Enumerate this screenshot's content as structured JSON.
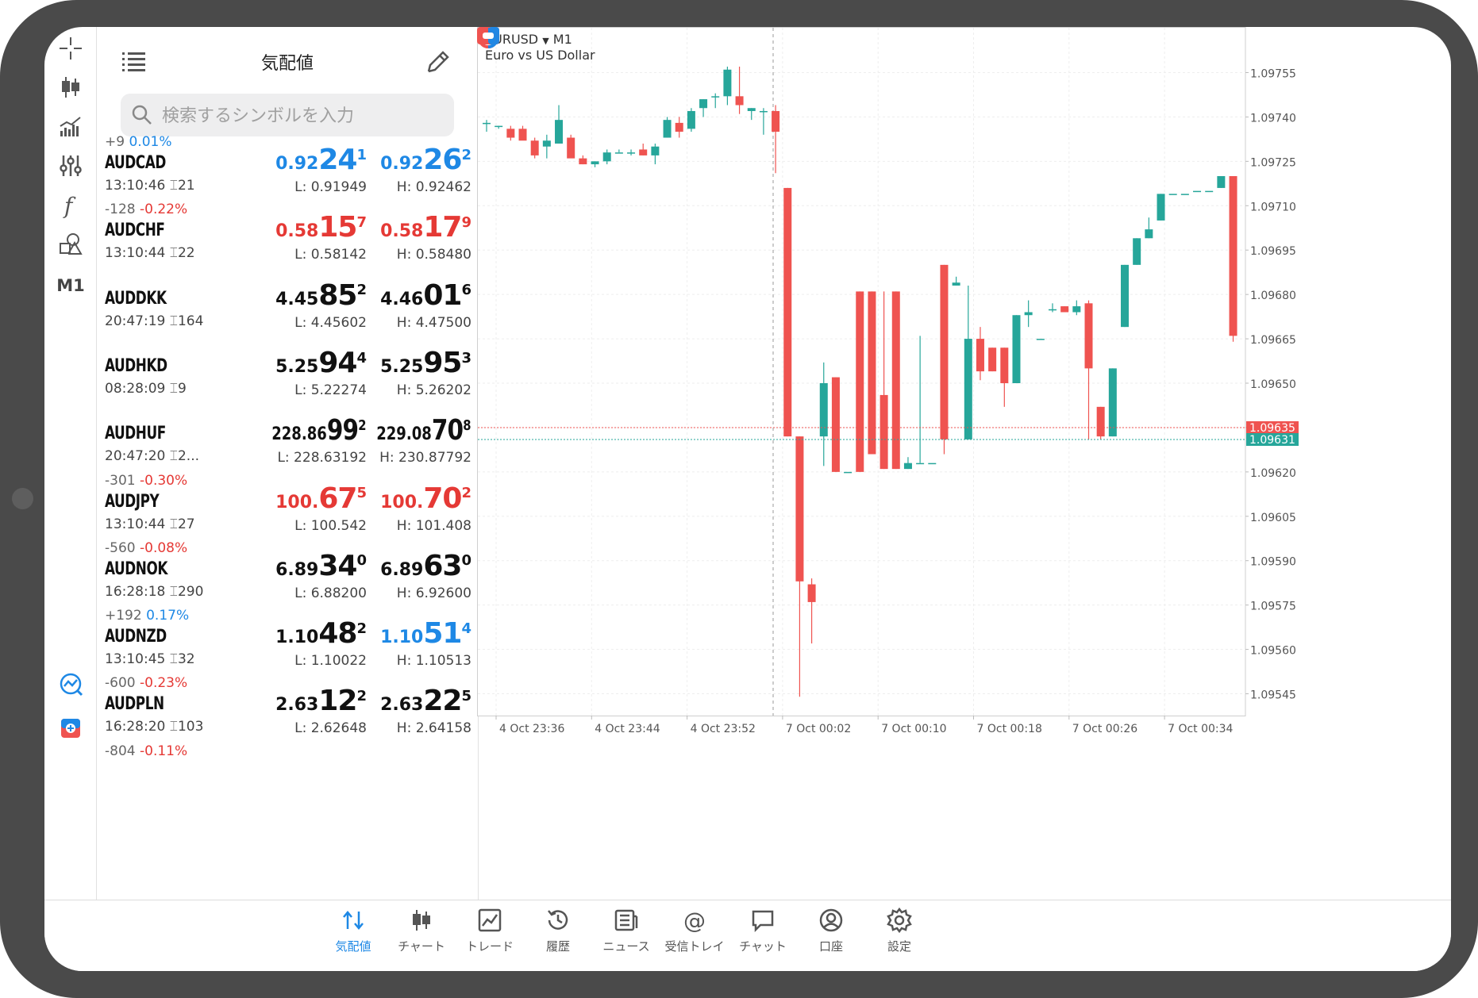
{
  "toolbar": {
    "items": [
      "crosshair-icon",
      "candlestick-icon",
      "indicators-icon",
      "settings-sliders-icon",
      "function-icon",
      "objects-icon"
    ],
    "timeframe": "M1"
  },
  "quotes": {
    "title": "気配値",
    "search_placeholder": "検索するシンボルを入力",
    "rows": [
      {
        "change": "+9",
        "pct": "0.01%",
        "dir": "up",
        "symbol": "AUDCAD",
        "time": "13:10:46",
        "spread": "21",
        "bid": {
          "pre": "0.92",
          "big": "24",
          "sup": "1",
          "color": "blue"
        },
        "ask": {
          "pre": "0.92",
          "big": "26",
          "sup": "2",
          "color": "blue"
        },
        "low": "L: 0.91949",
        "high": "H: 0.92462"
      },
      {
        "change": "-128",
        "pct": "-0.22%",
        "dir": "down",
        "symbol": "AUDCHF",
        "time": "13:10:44",
        "spread": "22",
        "bid": {
          "pre": "0.58",
          "big": "15",
          "sup": "7",
          "color": "red"
        },
        "ask": {
          "pre": "0.58",
          "big": "17",
          "sup": "9",
          "color": "red"
        },
        "low": "L: 0.58142",
        "high": "H: 0.58480"
      },
      {
        "change": "",
        "pct": "",
        "dir": "",
        "symbol": "AUDDKK",
        "time": "20:47:19",
        "spread": "164",
        "bid": {
          "pre": "4.45",
          "big": "85",
          "sup": "2",
          "color": "black"
        },
        "ask": {
          "pre": "4.46",
          "big": "01",
          "sup": "6",
          "color": "black"
        },
        "low": "L: 4.45602",
        "high": "H: 4.47500"
      },
      {
        "change": "",
        "pct": "",
        "dir": "",
        "symbol": "AUDHKD",
        "time": "08:28:09",
        "spread": "9",
        "bid": {
          "pre": "5.25",
          "big": "94",
          "sup": "4",
          "color": "black"
        },
        "ask": {
          "pre": "5.25",
          "big": "95",
          "sup": "3",
          "color": "black"
        },
        "low": "L: 5.22274",
        "high": "H: 5.26202"
      },
      {
        "change": "",
        "pct": "",
        "dir": "",
        "symbol": "AUDHUF",
        "time": "20:47:20",
        "spread": "2...",
        "bid": {
          "pre": "228.86",
          "big": "99",
          "sup": "2",
          "color": "black"
        },
        "ask": {
          "pre": "229.08",
          "big": "70",
          "sup": "8",
          "color": "black"
        },
        "low": "L: 228.63192",
        "high": "H: 230.87792"
      },
      {
        "change": "-301",
        "pct": "-0.30%",
        "dir": "down",
        "symbol": "AUDJPY",
        "time": "13:10:44",
        "spread": "27",
        "bid": {
          "pre": "100.",
          "big": "67",
          "sup": "5",
          "color": "red"
        },
        "ask": {
          "pre": "100.",
          "big": "70",
          "sup": "2",
          "color": "red"
        },
        "low": "L: 100.542",
        "high": "H: 101.408"
      },
      {
        "change": "-560",
        "pct": "-0.08%",
        "dir": "down",
        "symbol": "AUDNOK",
        "time": "16:28:18",
        "spread": "290",
        "bid": {
          "pre": "6.89",
          "big": "34",
          "sup": "0",
          "color": "black"
        },
        "ask": {
          "pre": "6.89",
          "big": "63",
          "sup": "0",
          "color": "black"
        },
        "low": "L: 6.88200",
        "high": "H: 6.92600"
      },
      {
        "change": "+192",
        "pct": "0.17%",
        "dir": "up",
        "symbol": "AUDNZD",
        "time": "13:10:45",
        "spread": "32",
        "bid": {
          "pre": "1.10",
          "big": "48",
          "sup": "2",
          "color": "black"
        },
        "ask": {
          "pre": "1.10",
          "big": "51",
          "sup": "4",
          "color": "blue"
        },
        "low": "L: 1.10022",
        "high": "H: 1.10513"
      },
      {
        "change": "-600",
        "pct": "-0.23%",
        "dir": "down",
        "symbol": "AUDPLN",
        "time": "16:28:20",
        "spread": "103",
        "bid": {
          "pre": "2.63",
          "big": "12",
          "sup": "2",
          "color": "black"
        },
        "ask": {
          "pre": "2.63",
          "big": "22",
          "sup": "5",
          "color": "black"
        },
        "low": "L: 2.62648",
        "high": "H: 2.64158"
      },
      {
        "change": "-804",
        "pct": "-0.11%",
        "dir": "down",
        "symbol": "",
        "time": "",
        "spread": "",
        "bid": {
          "pre": "",
          "big": "",
          "sup": "",
          "color": "black"
        },
        "ask": {
          "pre": "",
          "big": "",
          "sup": "",
          "color": "black"
        },
        "low": "",
        "high": ""
      }
    ]
  },
  "chart": {
    "symbol": "EURUSD",
    "timeframe": "M1",
    "description": "Euro vs US Dollar",
    "price_labels": [
      "1.09755",
      "1.09740",
      "1.09725",
      "1.09710",
      "1.09695",
      "1.09680",
      "1.09665",
      "1.09650",
      "1.09635",
      "1.09620",
      "1.09605",
      "1.09590",
      "1.09575",
      "1.09560",
      "1.09545"
    ],
    "bid_label": "1.09635",
    "ask_label": "1.09631",
    "time_labels": [
      "4 Oct 23:36",
      "4 Oct 23:44",
      "4 Oct 23:52",
      "7 Oct 00:02",
      "7 Oct 00:10",
      "7 Oct 00:18",
      "7 Oct 00:26",
      "7 Oct 00:34"
    ],
    "colors": {
      "up": "#26a69a",
      "down": "#ef5350",
      "bid_line": "#ef5350",
      "ask_line": "#26a69a"
    },
    "candles": [
      {
        "o": 1.09738,
        "h": 1.09739,
        "l": 1.09735,
        "c": 1.09738
      },
      {
        "o": 1.09737,
        "h": 1.09737,
        "l": 1.09736,
        "c": 1.09737
      },
      {
        "o": 1.09736,
        "h": 1.09737,
        "l": 1.09732,
        "c": 1.09733
      },
      {
        "o": 1.09736,
        "h": 1.09737,
        "l": 1.09733,
        "c": 1.09732
      },
      {
        "o": 1.09732,
        "h": 1.09733,
        "l": 1.09726,
        "c": 1.09727
      },
      {
        "o": 1.0973,
        "h": 1.09734,
        "l": 1.09726,
        "c": 1.09732
      },
      {
        "o": 1.09731,
        "h": 1.09744,
        "l": 1.09731,
        "c": 1.09739
      },
      {
        "o": 1.09733,
        "h": 1.09734,
        "l": 1.09727,
        "c": 1.09726
      },
      {
        "o": 1.09726,
        "h": 1.09727,
        "l": 1.09724,
        "c": 1.09724
      },
      {
        "o": 1.09724,
        "h": 1.09725,
        "l": 1.09723,
        "c": 1.09725
      },
      {
        "o": 1.09725,
        "h": 1.09729,
        "l": 1.09724,
        "c": 1.09728
      },
      {
        "o": 1.09728,
        "h": 1.09729,
        "l": 1.09728,
        "c": 1.09728
      },
      {
        "o": 1.09728,
        "h": 1.09729,
        "l": 1.09727,
        "c": 1.09728
      },
      {
        "o": 1.09729,
        "h": 1.09731,
        "l": 1.09727,
        "c": 1.09727
      },
      {
        "o": 1.09727,
        "h": 1.09731,
        "l": 1.09724,
        "c": 1.0973
      },
      {
        "o": 1.09733,
        "h": 1.0974,
        "l": 1.09733,
        "c": 1.09739
      },
      {
        "o": 1.09738,
        "h": 1.0974,
        "l": 1.09733,
        "c": 1.09735
      },
      {
        "o": 1.09736,
        "h": 1.09743,
        "l": 1.09735,
        "c": 1.09742
      },
      {
        "o": 1.09743,
        "h": 1.09746,
        "l": 1.0974,
        "c": 1.09746
      },
      {
        "o": 1.09747,
        "h": 1.09748,
        "l": 1.09743,
        "c": 1.09747
      },
      {
        "o": 1.09747,
        "h": 1.09757,
        "l": 1.09744,
        "c": 1.09756
      },
      {
        "o": 1.09747,
        "h": 1.09757,
        "l": 1.09741,
        "c": 1.09744
      },
      {
        "o": 1.09742,
        "h": 1.09743,
        "l": 1.09739,
        "c": 1.09743
      },
      {
        "o": 1.09742,
        "h": 1.09743,
        "l": 1.09734,
        "c": 1.09742
      },
      {
        "o": 1.09742,
        "h": 1.09744,
        "l": 1.09721,
        "c": 1.09735
      },
      {
        "o": 1.09716,
        "h": 1.09716,
        "l": 1.09632,
        "c": 1.09632
      },
      {
        "o": 1.09632,
        "h": 1.09632,
        "l": 1.09544,
        "c": 1.09583
      },
      {
        "o": 1.09582,
        "h": 1.09584,
        "l": 1.09562,
        "c": 1.09576
      },
      {
        "o": 1.09632,
        "h": 1.09657,
        "l": 1.09622,
        "c": 1.0965
      },
      {
        "o": 1.09652,
        "h": 1.09652,
        "l": 1.0962,
        "c": 1.0962
      },
      {
        "o": 1.0962,
        "h": 1.0962,
        "l": 1.0962,
        "c": 1.0962
      },
      {
        "o": 1.09681,
        "h": 1.09681,
        "l": 1.0962,
        "c": 1.0962
      },
      {
        "o": 1.09681,
        "h": 1.09681,
        "l": 1.09626,
        "c": 1.09626
      },
      {
        "o": 1.09646,
        "h": 1.09681,
        "l": 1.09621,
        "c": 1.09621
      },
      {
        "o": 1.09681,
        "h": 1.09681,
        "l": 1.09621,
        "c": 1.09621
      },
      {
        "o": 1.09621,
        "h": 1.09625,
        "l": 1.09621,
        "c": 1.09623
      },
      {
        "o": 1.09623,
        "h": 1.09666,
        "l": 1.09623,
        "c": 1.09623
      },
      {
        "o": 1.09623,
        "h": 1.09623,
        "l": 1.09623,
        "c": 1.09623
      },
      {
        "o": 1.0969,
        "h": 1.0969,
        "l": 1.09626,
        "c": 1.09631
      },
      {
        "o": 1.09683,
        "h": 1.09686,
        "l": 1.09683,
        "c": 1.09684
      },
      {
        "o": 1.09631,
        "h": 1.09683,
        "l": 1.09631,
        "c": 1.09665
      },
      {
        "o": 1.09665,
        "h": 1.09669,
        "l": 1.09651,
        "c": 1.09654
      },
      {
        "o": 1.09662,
        "h": 1.09662,
        "l": 1.09654,
        "c": 1.09654
      },
      {
        "o": 1.09662,
        "h": 1.09662,
        "l": 1.09642,
        "c": 1.0965
      },
      {
        "o": 1.0965,
        "h": 1.09673,
        "l": 1.0965,
        "c": 1.09673
      },
      {
        "o": 1.09673,
        "h": 1.09678,
        "l": 1.09669,
        "c": 1.09674
      },
      {
        "o": 1.09665,
        "h": 1.09665,
        "l": 1.09665,
        "c": 1.09665
      },
      {
        "o": 1.09675,
        "h": 1.09677,
        "l": 1.09674,
        "c": 1.09675
      },
      {
        "o": 1.09676,
        "h": 1.09676,
        "l": 1.09674,
        "c": 1.09674
      },
      {
        "o": 1.09674,
        "h": 1.09678,
        "l": 1.09673,
        "c": 1.09676
      },
      {
        "o": 1.09677,
        "h": 1.09678,
        "l": 1.09631,
        "c": 1.09655
      },
      {
        "o": 1.09642,
        "h": 1.09642,
        "l": 1.09631,
        "c": 1.09632
      },
      {
        "o": 1.09632,
        "h": 1.09655,
        "l": 1.09632,
        "c": 1.09655
      },
      {
        "o": 1.09669,
        "h": 1.0969,
        "l": 1.09669,
        "c": 1.0969
      },
      {
        "o": 1.0969,
        "h": 1.09699,
        "l": 1.0969,
        "c": 1.09699
      },
      {
        "o": 1.09699,
        "h": 1.09706,
        "l": 1.09699,
        "c": 1.09702
      },
      {
        "o": 1.09705,
        "h": 1.09714,
        "l": 1.09705,
        "c": 1.09714
      },
      {
        "o": 1.09714,
        "h": 1.09714,
        "l": 1.09714,
        "c": 1.09714
      },
      {
        "o": 1.09714,
        "h": 1.09714,
        "l": 1.09714,
        "c": 1.09714
      },
      {
        "o": 1.09715,
        "h": 1.09715,
        "l": 1.09715,
        "c": 1.09715
      },
      {
        "o": 1.09715,
        "h": 1.09715,
        "l": 1.09715,
        "c": 1.09715
      },
      {
        "o": 1.09716,
        "h": 1.0972,
        "l": 1.09716,
        "c": 1.0972
      },
      {
        "o": 1.0972,
        "h": 1.0972,
        "l": 1.09664,
        "c": 1.09666
      }
    ]
  },
  "nav": [
    {
      "label": "気配値",
      "icon": "quotes-icon",
      "active": true
    },
    {
      "label": "チャート",
      "icon": "chart-icon",
      "active": false
    },
    {
      "label": "トレード",
      "icon": "trade-icon",
      "active": false
    },
    {
      "label": "履歴",
      "icon": "history-icon",
      "active": false
    },
    {
      "label": "ニュース",
      "icon": "news-icon",
      "active": false
    },
    {
      "label": "受信トレイ",
      "icon": "mail-icon",
      "active": false
    },
    {
      "label": "チャット",
      "icon": "chat-icon",
      "active": false
    },
    {
      "label": "口座",
      "icon": "account-icon",
      "active": false
    },
    {
      "label": "設定",
      "icon": "settings-icon",
      "active": false
    }
  ]
}
